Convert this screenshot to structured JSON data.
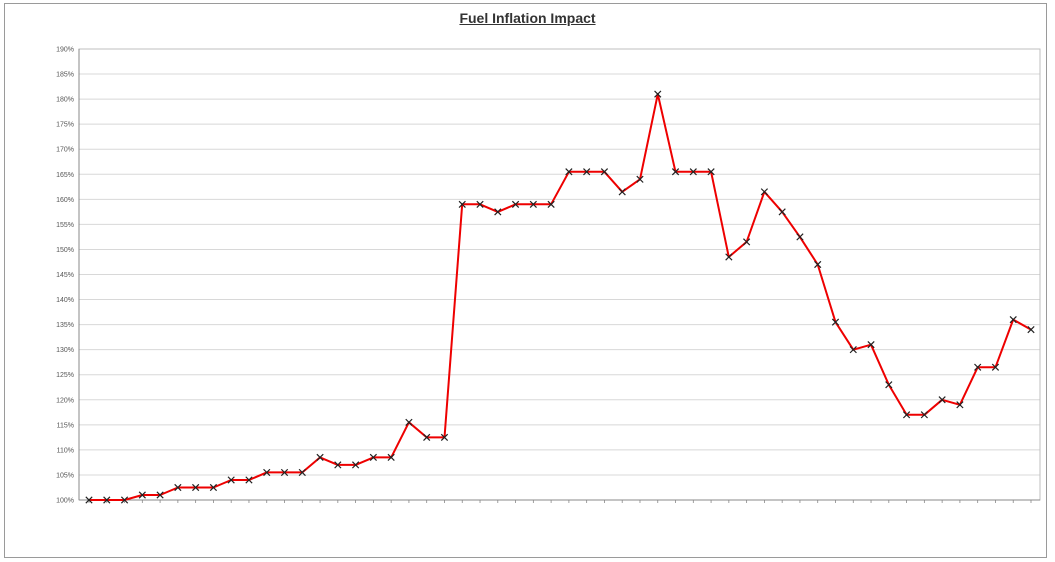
{
  "chart_data": {
    "type": "line",
    "title": "Fuel Inflation Impact",
    "xlabel": "",
    "ylabel": "",
    "ylim": [
      100,
      190
    ],
    "y_ticks": [
      "100%",
      "105%",
      "110%",
      "115%",
      "120%",
      "125%",
      "130%",
      "135%",
      "140%",
      "145%",
      "150%",
      "155%",
      "160%",
      "165%",
      "170%",
      "175%",
      "180%",
      "185%",
      "190%"
    ],
    "grid": true,
    "legend": "none",
    "line_color": "#ee0000",
    "marker": "x",
    "series": [
      {
        "values": [
          100,
          100,
          100,
          101,
          101,
          102.5,
          102.5,
          102.5,
          104,
          104,
          105.5,
          105.5,
          105.5,
          108.5,
          107,
          107,
          108.5,
          108.5,
          115.5,
          112.5,
          112.5,
          159,
          159,
          157.5,
          159,
          159,
          159,
          165.5,
          165.5,
          165.5,
          161.5,
          164,
          181,
          165.5,
          165.5,
          165.5,
          148.5,
          151.5,
          161.5,
          157.5,
          152.5,
          147,
          135.5,
          130,
          131,
          123,
          117,
          117,
          120,
          119,
          126.5,
          126.5,
          136,
          134
        ]
      }
    ]
  }
}
